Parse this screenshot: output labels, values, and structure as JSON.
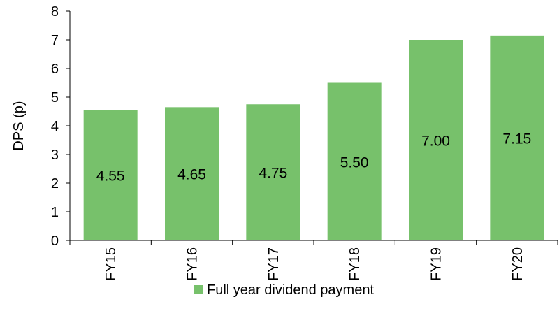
{
  "chart_data": {
    "type": "bar",
    "categories": [
      "FY15",
      "FY16",
      "FY17",
      "FY18",
      "FY19",
      "FY20"
    ],
    "series": [
      {
        "name": "Full year dividend payment",
        "values": [
          4.55,
          4.65,
          4.75,
          5.5,
          7.0,
          7.15
        ]
      }
    ],
    "data_labels": [
      "4.55",
      "4.65",
      "4.75",
      "5.50",
      "7.00",
      "7.15"
    ],
    "ylabel": "DPS (p)",
    "xlabel": "",
    "ylim": [
      0,
      8
    ],
    "yticks": [
      0,
      1,
      2,
      3,
      4,
      5,
      6,
      7,
      8
    ],
    "grid": false,
    "legend_position": "bottom-center",
    "bar_color": "#77c16b",
    "axis_color": "#000000"
  }
}
